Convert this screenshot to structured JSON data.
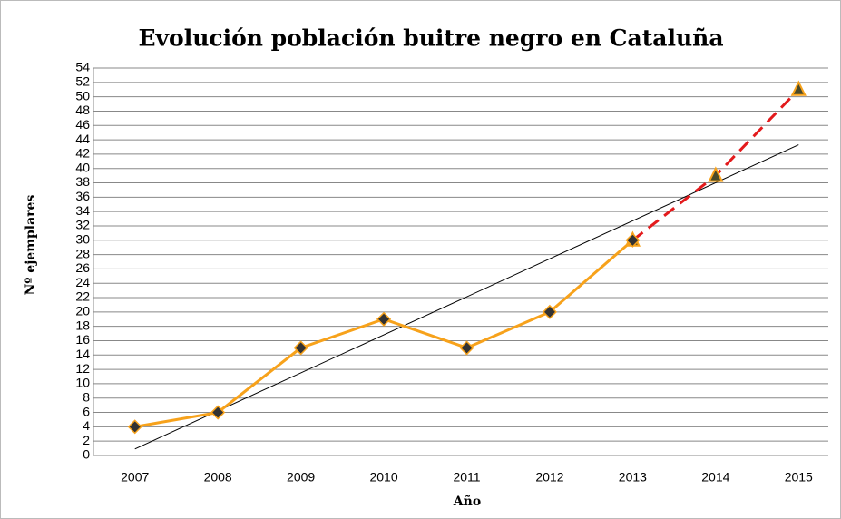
{
  "chart_data": {
    "type": "line",
    "title": "Evolución población buitre negro en Cataluña",
    "x_label": "Año",
    "y_label": "Nº ejemplares",
    "categories": [
      "2007",
      "2008",
      "2009",
      "2010",
      "2011",
      "2012",
      "2013",
      "2014",
      "2015"
    ],
    "series": [
      {
        "color": "#f7a21b",
        "dash": false,
        "marker": "diamond",
        "values": [
          4,
          6,
          15,
          19,
          15,
          20,
          30,
          null,
          null
        ]
      },
      {
        "color": "#e31a1c",
        "dash": true,
        "marker": "triangle",
        "values": [
          null,
          null,
          null,
          null,
          null,
          null,
          30,
          39,
          51
        ]
      }
    ],
    "trendline": true,
    "ylim": [
      0,
      54
    ],
    "yticks": [
      0,
      2,
      4,
      6,
      8,
      10,
      12,
      14,
      16,
      18,
      20,
      22,
      24,
      26,
      28,
      30,
      32,
      34,
      36,
      38,
      40,
      42,
      44,
      46,
      48,
      50,
      52,
      54
    ],
    "grid": true
  }
}
